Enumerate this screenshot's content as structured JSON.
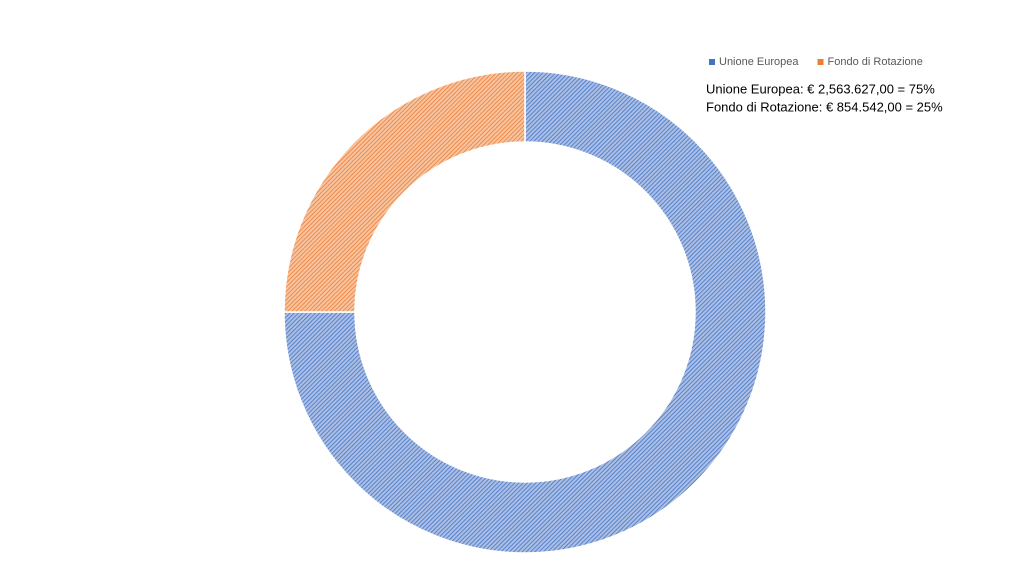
{
  "chart_data": {
    "type": "doughnut",
    "categories": [
      "Unione Europea",
      "Fondo di Rotazione"
    ],
    "values": [
      75,
      25
    ],
    "colors": [
      "#4472c4",
      "#ed7d31"
    ],
    "legend": "top-right",
    "annotations": [
      "Unione Europea: € 2,563.627,00 = 75%",
      "Fondo di Rotazione: € 854.542,00 = 25%"
    ]
  }
}
